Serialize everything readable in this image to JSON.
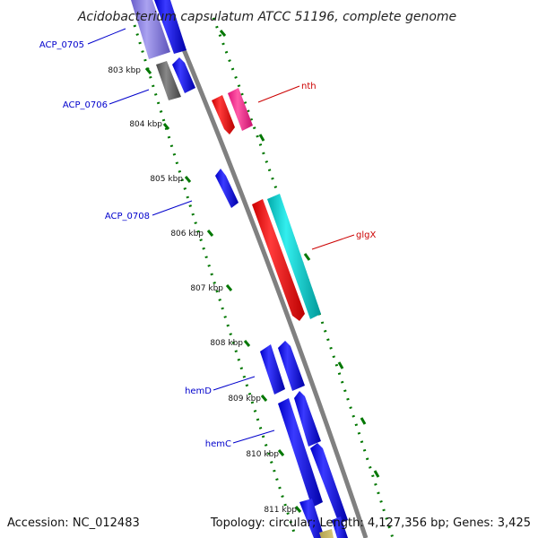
{
  "title": "Acidobacterium capsulatum ATCC 51196, complete genome",
  "footer": {
    "accession": "Accession: NC_012483",
    "summary": "Topology: circular; Length: 4,127,356 bp; Genes: 3,425"
  },
  "ticks": [
    "803 kbp",
    "804 kbp",
    "805 kbp",
    "806 kbp",
    "807 kbp",
    "808 kbp",
    "809 kbp",
    "810 kbp",
    "811 kbp"
  ],
  "gene_labels": {
    "acp0705": "ACP_0705",
    "acp0706": "ACP_0706",
    "acp0708": "ACP_0708",
    "hemD": "hemD",
    "hemC": "hemC",
    "nth": "nth",
    "glgX": "glgX"
  },
  "colors": {
    "backbone": "#808080",
    "cds_forward": "#0000ee",
    "cds_reverse": "#ff0000",
    "cyan": "#00cccc",
    "pink": "#ff2a8a",
    "grey": "#5f5f5f",
    "lavender": "#8a7fdd",
    "tick_green": "#007700",
    "label_blue": "#0000cc",
    "label_red": "#cc0000"
  }
}
